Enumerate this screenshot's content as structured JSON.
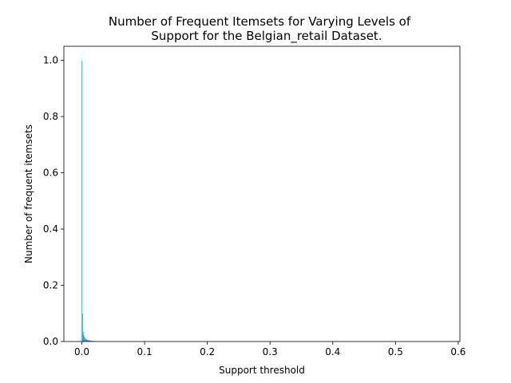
{
  "chart_data": {
    "type": "bar",
    "title_line1": "Number of Frequent Itemsets for Varying Levels of",
    "title_line2": "Support for the Belgian_retail Dataset.",
    "xlabel": "Support threshold",
    "ylabel": "Number of frequent itemsets",
    "xlim": [
      -0.0287,
      0.6027
    ],
    "ylim": [
      0,
      1.05
    ],
    "x_ticks": [
      0.0,
      0.1,
      0.2,
      0.3,
      0.4,
      0.5,
      0.6
    ],
    "x_tick_labels": [
      "0.0",
      "0.1",
      "0.2",
      "0.3",
      "0.4",
      "0.5",
      "0.6"
    ],
    "y_ticks": [
      0.0,
      0.2,
      0.4,
      0.6,
      0.8,
      1.0
    ],
    "y_tick_labels": [
      "0.0",
      "0.2",
      "0.4",
      "0.6",
      "0.8",
      "1.0"
    ],
    "grid": false,
    "legend": "none",
    "colors": {
      "first_bar": "#17becf",
      "bars": "#2a8ff0"
    },
    "bar_width": 0.001,
    "x": [
      0.0,
      0.001,
      0.002,
      0.003,
      0.004,
      0.005,
      0.006,
      0.007,
      0.008,
      0.009,
      0.01,
      0.011,
      0.012,
      0.013,
      0.014,
      0.015,
      0.016,
      0.017,
      0.018,
      0.019,
      0.02,
      0.021,
      0.022,
      0.023,
      0.024
    ],
    "values": [
      1.0,
      0.1,
      0.035,
      0.022,
      0.016,
      0.012,
      0.01,
      0.008,
      0.007,
      0.006,
      0.005,
      0.0045,
      0.004,
      0.0035,
      0.003,
      0.0028,
      0.0025,
      0.0022,
      0.002,
      0.0018,
      0.0016,
      0.0014,
      0.0012,
      0.001,
      0.0008
    ]
  }
}
